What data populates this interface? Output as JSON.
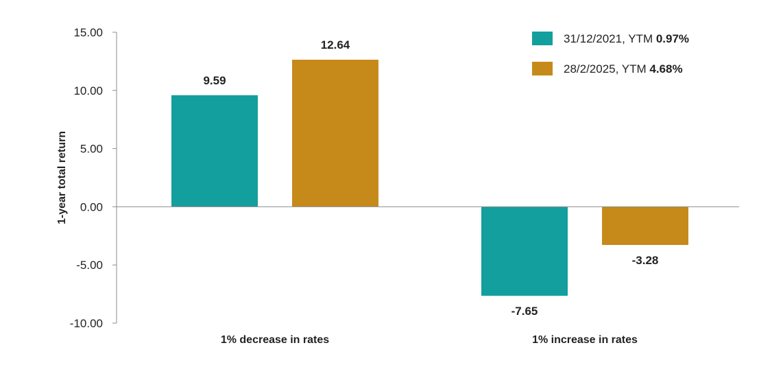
{
  "chart_data": {
    "type": "bar",
    "title": "",
    "xlabel": "",
    "ylabel": "1-year total return",
    "categories": [
      "1% decrease in rates",
      "1% increase in rates"
    ],
    "series": [
      {
        "name": "31/12/2021, YTM ",
        "name_bold": "0.97%",
        "color": "#139f9d",
        "values": [
          9.59,
          -7.65
        ],
        "labels": [
          "9.59",
          "-7.65"
        ]
      },
      {
        "name": "28/2/2025, YTM ",
        "name_bold": "4.68%",
        "color": "#c68a1b",
        "values": [
          12.64,
          -3.28
        ],
        "labels": [
          "12.64",
          "-3.28"
        ]
      }
    ],
    "ylim": [
      -10,
      15
    ],
    "yticks": [
      15,
      10,
      5,
      0,
      -5,
      -10
    ],
    "ytick_labels": [
      "15.00",
      "10.00",
      "5.00",
      "0.00",
      "-5.00",
      "-10.00"
    ],
    "grid": false,
    "legend_position": "top-right"
  }
}
